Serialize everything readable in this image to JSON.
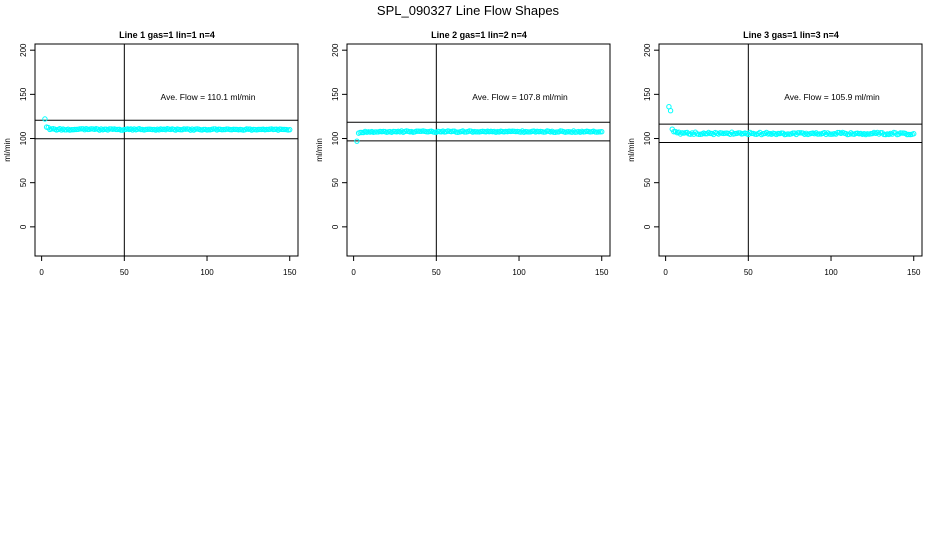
{
  "figure": {
    "title": "SPL_090327  Line Flow Shapes"
  },
  "chart_data": [
    {
      "type": "scatter",
      "title": "Line 1 gas=1 lin=1 n=4",
      "xlabel": "",
      "ylabel": "ml/min",
      "xlim": [
        -4,
        155
      ],
      "ylim": [
        -33,
        207
      ],
      "xticks": [
        0,
        50,
        100,
        150
      ],
      "yticks": [
        0,
        50,
        100,
        150,
        200
      ],
      "ref_lines": {
        "h": [
          99.7,
          120.7
        ],
        "v": [
          50
        ]
      },
      "annotation": "Ave. Flow =  110.1  ml/min",
      "point_color": "#00ffff",
      "series": [
        {
          "x": [
            2,
            3,
            4,
            5,
            6,
            7,
            8,
            9,
            10,
            11,
            12,
            13,
            14,
            15,
            16,
            17,
            18,
            19,
            20,
            21,
            22,
            23,
            24,
            25,
            26,
            27,
            28,
            29,
            30,
            31,
            32,
            33,
            34,
            35,
            36,
            37,
            38,
            39,
            40,
            41,
            42,
            43,
            44,
            45,
            46,
            47,
            48,
            49,
            50,
            51,
            52,
            53,
            54,
            55,
            56,
            57,
            58,
            59,
            60,
            61,
            62,
            63,
            64,
            65,
            66,
            67,
            68,
            69,
            70,
            71,
            72,
            73,
            74,
            75,
            76,
            77,
            78,
            79,
            80,
            81,
            82,
            83,
            84,
            85,
            86,
            87,
            88,
            89,
            90,
            91,
            92,
            93,
            94,
            95,
            96,
            97,
            98,
            99,
            100,
            101,
            102,
            103,
            104,
            105,
            106,
            107,
            108,
            109,
            110,
            111,
            112,
            113,
            114,
            115,
            116,
            117,
            118,
            119,
            120,
            121,
            122,
            123,
            124,
            125,
            126,
            127,
            128,
            129,
            130,
            131,
            132,
            133,
            134,
            135,
            136,
            137,
            138,
            139,
            140,
            141,
            142,
            143,
            144,
            145,
            146,
            147,
            148,
            149,
            150
          ],
          "y": [
            122.1,
            112.9,
            112.4,
            110.3,
            110.9,
            111.1,
            110.5,
            109.7,
            110.3,
            111.1,
            109.7,
            110.7,
            109.8,
            109.8,
            110.6,
            109.6,
            110.0,
            110.0,
            110.2,
            110.3,
            110.4,
            110.8,
            111.0,
            111.0,
            110.0,
            111.1,
            110.3,
            110.5,
            111.0,
            110.8,
            110.4,
            111.1,
            110.6,
            109.6,
            110.8,
            109.9,
            110.5,
            110.5,
            109.7,
            110.9,
            110.8,
            110.5,
            110.8,
            110.3,
            110.3,
            110.4,
            109.6,
            109.6,
            110.1,
            110.4,
            110.9,
            110.3,
            110.9,
            109.7,
            110.8,
            109.9,
            110.5,
            111.1,
            110.2,
            110.2,
            109.7,
            110.2,
            110.4,
            110.6,
            110.4,
            110.1,
            110.3,
            109.6,
            110.5,
            109.8,
            110.9,
            110.3,
            110.5,
            110.0,
            111.1,
            110.6,
            110.3,
            110.8,
            110.2,
            109.6,
            110.7,
            110.3,
            110.0,
            110.0,
            110.8,
            110.6,
            110.8,
            110.6,
            109.5,
            110.7,
            109.6,
            110.6,
            110.9,
            110.5,
            110.0,
            109.7,
            110.3,
            110.3,
            109.7,
            110.0,
            109.9,
            110.4,
            110.8,
            110.8,
            109.7,
            110.6,
            110.4,
            110.0,
            110.1,
            110.2,
            110.7,
            110.6,
            110.1,
            110.0,
            110.4,
            110.3,
            110.3,
            109.9,
            110.2,
            110.0,
            109.6,
            110.0,
            110.9,
            110.5,
            110.7,
            109.6,
            110.2,
            110.1,
            109.8,
            110.2,
            110.3,
            110.3,
            110.5,
            109.9,
            110.3,
            110.3,
            110.5,
            110.8,
            110.2,
            110.4,
            110.6,
            109.5,
            110.7,
            110.4,
            110.3,
            110.3,
            110.1,
            109.7,
            110.0
          ]
        }
      ]
    },
    {
      "type": "scatter",
      "title": "Line 2 gas=1 lin=2 n=4",
      "xlabel": "",
      "ylabel": "ml/min",
      "xlim": [
        -4,
        155
      ],
      "ylim": [
        -33,
        207
      ],
      "xticks": [
        0,
        50,
        100,
        150
      ],
      "yticks": [
        0,
        50,
        100,
        150,
        200
      ],
      "ref_lines": {
        "h": [
          97.4,
          118.4
        ],
        "v": [
          50
        ]
      },
      "annotation": "Ave. Flow =  107.8  ml/min",
      "point_color": "#00ffff",
      "series": [
        {
          "x": [
            2,
            3,
            4,
            5,
            6,
            7,
            8,
            9,
            10,
            11,
            12,
            13,
            14,
            15,
            16,
            17,
            18,
            19,
            20,
            21,
            22,
            23,
            24,
            25,
            26,
            27,
            28,
            29,
            30,
            31,
            32,
            33,
            34,
            35,
            36,
            37,
            38,
            39,
            40,
            41,
            42,
            43,
            44,
            45,
            46,
            47,
            48,
            49,
            50,
            51,
            52,
            53,
            54,
            55,
            56,
            57,
            58,
            59,
            60,
            61,
            62,
            63,
            64,
            65,
            66,
            67,
            68,
            69,
            70,
            71,
            72,
            73,
            74,
            75,
            76,
            77,
            78,
            79,
            80,
            81,
            82,
            83,
            84,
            85,
            86,
            87,
            88,
            89,
            90,
            91,
            92,
            93,
            94,
            95,
            96,
            97,
            98,
            99,
            100,
            101,
            102,
            103,
            104,
            105,
            106,
            107,
            108,
            109,
            110,
            111,
            112,
            113,
            114,
            115,
            116,
            117,
            118,
            119,
            120,
            121,
            122,
            123,
            124,
            125,
            126,
            127,
            128,
            129,
            130,
            131,
            132,
            133,
            134,
            135,
            136,
            137,
            138,
            139,
            140,
            141,
            142,
            143,
            144,
            145,
            146,
            147,
            148,
            149,
            150
          ],
          "y": [
            97.0,
            106.1,
            106.8,
            106.8,
            106.8,
            108.0,
            107.2,
            107.6,
            107.3,
            107.9,
            107.1,
            107.4,
            107.4,
            107.5,
            108.0,
            107.7,
            108.0,
            107.8,
            107.2,
            107.6,
            107.8,
            107.1,
            108.0,
            107.9,
            107.6,
            108.2,
            107.5,
            108.5,
            107.2,
            108.0,
            108.5,
            108.1,
            107.6,
            107.9,
            107.2,
            107.6,
            108.3,
            108.3,
            108.2,
            108.2,
            108.5,
            108.1,
            107.7,
            107.6,
            108.0,
            108.3,
            107.6,
            107.2,
            107.2,
            108.1,
            107.8,
            107.6,
            108.4,
            107.4,
            107.8,
            108.5,
            108.1,
            107.8,
            108.3,
            108.3,
            107.3,
            107.1,
            107.4,
            107.9,
            108.5,
            107.4,
            107.4,
            107.9,
            108.5,
            108.3,
            107.3,
            107.9,
            107.6,
            107.6,
            107.5,
            107.9,
            108.1,
            107.9,
            107.6,
            108.3,
            107.7,
            108.1,
            107.7,
            108.0,
            107.2,
            107.8,
            107.4,
            108.3,
            107.9,
            107.6,
            108.0,
            107.8,
            108.3,
            108.0,
            108.3,
            108.2,
            107.9,
            108.0,
            107.7,
            107.3,
            108.5,
            107.2,
            107.9,
            107.6,
            107.5,
            107.6,
            108.2,
            108.4,
            107.4,
            108.1,
            107.7,
            108.0,
            107.7,
            107.3,
            107.5,
            108.5,
            108.2,
            107.5,
            108.2,
            107.2,
            107.1,
            107.5,
            107.5,
            108.5,
            108.3,
            107.7,
            107.2,
            107.6,
            107.7,
            107.5,
            107.2,
            108.5,
            107.2,
            107.4,
            107.9,
            107.2,
            108.1,
            107.5,
            107.7,
            108.3,
            107.9,
            107.5,
            107.7,
            108.3,
            107.5,
            107.3,
            107.5,
            107.6,
            107.7
          ]
        }
      ]
    },
    {
      "type": "scatter",
      "title": "Line 3 gas=1 lin=3 n=4",
      "xlabel": "",
      "ylabel": "ml/min",
      "xlim": [
        -4,
        155
      ],
      "ylim": [
        -33,
        207
      ],
      "xticks": [
        0,
        50,
        100,
        150
      ],
      "yticks": [
        0,
        50,
        100,
        150,
        200
      ],
      "ref_lines": {
        "h": [
          95.5,
          116.3
        ],
        "v": [
          50
        ]
      },
      "annotation": "Ave. Flow =  105.9  ml/min",
      "point_color": "#00ffff",
      "series": [
        {
          "x": [
            2,
            3,
            4,
            5,
            6,
            7,
            8,
            9,
            10,
            11,
            12,
            13,
            14,
            15,
            16,
            17,
            18,
            19,
            20,
            21,
            22,
            23,
            24,
            25,
            26,
            27,
            28,
            29,
            30,
            31,
            32,
            33,
            34,
            35,
            36,
            37,
            38,
            39,
            40,
            41,
            42,
            43,
            44,
            45,
            46,
            47,
            48,
            49,
            50,
            51,
            52,
            53,
            54,
            55,
            56,
            57,
            58,
            59,
            60,
            61,
            62,
            63,
            64,
            65,
            66,
            67,
            68,
            69,
            70,
            71,
            72,
            73,
            74,
            75,
            76,
            77,
            78,
            79,
            80,
            81,
            82,
            83,
            84,
            85,
            86,
            87,
            88,
            89,
            90,
            91,
            92,
            93,
            94,
            95,
            96,
            97,
            98,
            99,
            100,
            101,
            102,
            103,
            104,
            105,
            106,
            107,
            108,
            109,
            110,
            111,
            112,
            113,
            114,
            115,
            116,
            117,
            118,
            119,
            120,
            121,
            122,
            123,
            124,
            125,
            126,
            127,
            128,
            129,
            130,
            131,
            132,
            133,
            134,
            135,
            136,
            137,
            138,
            139,
            140,
            141,
            142,
            143,
            144,
            145,
            146,
            147,
            148,
            149,
            150
          ],
          "y": [
            136.0,
            131.5,
            110.6,
            107.7,
            107.8,
            106.6,
            107.2,
            105.1,
            106.5,
            106.2,
            106.6,
            106.8,
            105.3,
            104.9,
            106.3,
            104.9,
            107.1,
            105.3,
            104.8,
            104.8,
            105.1,
            106.1,
            105.5,
            105.5,
            106.8,
            105.7,
            105.8,
            104.6,
            106.7,
            106.0,
            105.1,
            106.5,
            106.1,
            105.7,
            106.0,
            106.2,
            105.7,
            104.8,
            107.1,
            105.1,
            105.6,
            105.8,
            106.3,
            106.3,
            105.2,
            105.6,
            106.2,
            105.4,
            104.6,
            106.9,
            105.8,
            105.7,
            105.0,
            104.8,
            105.6,
            106.8,
            104.5,
            105.5,
            105.7,
            106.9,
            105.2,
            105.6,
            104.9,
            106.0,
            105.4,
            104.6,
            105.8,
            105.6,
            106.2,
            106.0,
            104.5,
            104.8,
            105.2,
            104.9,
            105.3,
            106.2,
            106.2,
            104.6,
            106.5,
            106.4,
            106.5,
            106.2,
            104.8,
            105.9,
            104.6,
            105.3,
            105.8,
            106.1,
            105.5,
            106.4,
            105.0,
            105.2,
            105.2,
            105.9,
            106.6,
            104.7,
            106.3,
            105.1,
            104.9,
            105.0,
            105.4,
            105.0,
            106.7,
            106.7,
            105.9,
            106.8,
            106.1,
            105.6,
            104.5,
            104.9,
            106.4,
            105.2,
            104.9,
            105.8,
            106.0,
            105.4,
            105.7,
            104.8,
            105.5,
            104.5,
            105.3,
            105.0,
            105.4,
            105.6,
            106.8,
            105.9,
            106.9,
            105.1,
            106.6,
            106.4,
            104.6,
            104.5,
            105.2,
            104.6,
            105.8,
            105.0,
            106.8,
            106.3,
            104.5,
            105.0,
            106.3,
            106.2,
            106.2,
            105.7,
            104.5,
            104.6,
            104.5,
            104.8,
            105.4
          ]
        }
      ]
    }
  ]
}
